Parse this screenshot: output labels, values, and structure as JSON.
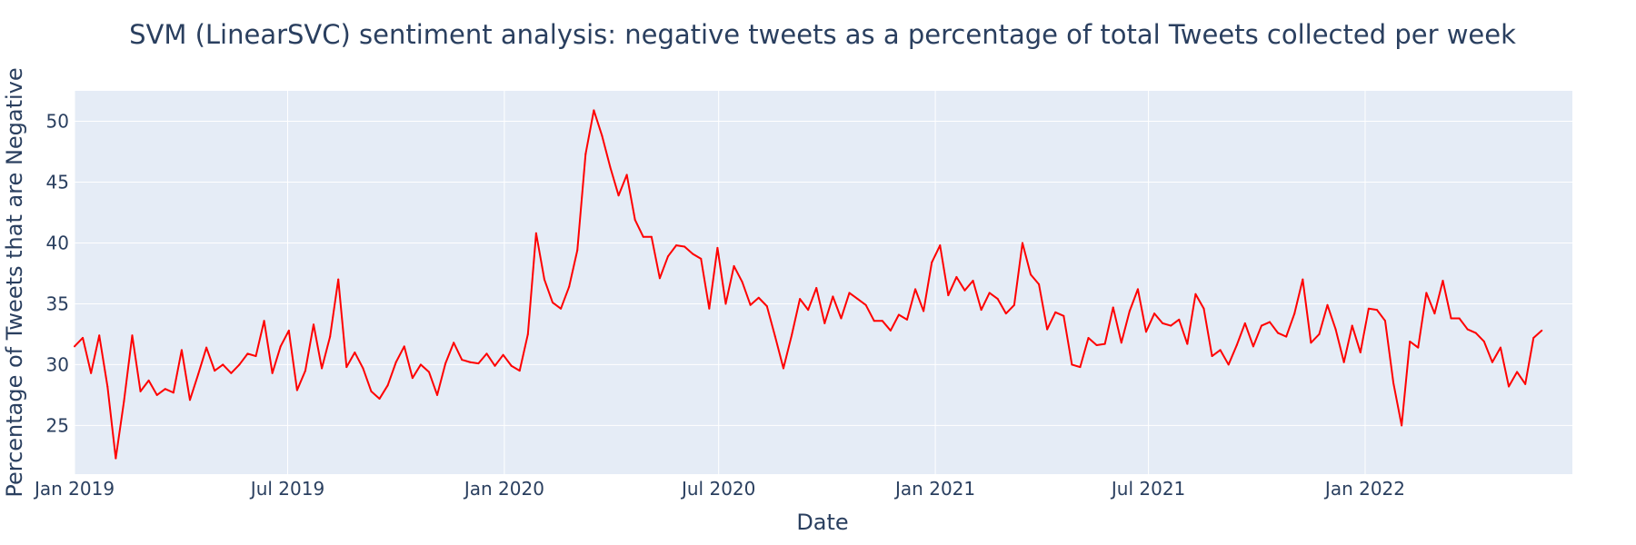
{
  "chart_data": {
    "type": "line",
    "title": "SVM (LinearSVC) sentiment analysis: negative tweets as a percentage of total Tweets collected per week",
    "xlabel": "Date",
    "ylabel": "Percentage of Tweets that are Negative",
    "xlim": [
      "2019-01-01",
      "2022-06-26"
    ],
    "ylim": [
      21,
      52.5
    ],
    "xticks": [
      {
        "label": "Jan 2019",
        "date": "2019-01-01"
      },
      {
        "label": "Jul 2019",
        "date": "2019-07-01"
      },
      {
        "label": "Jan 2020",
        "date": "2020-01-01"
      },
      {
        "label": "Jul 2020",
        "date": "2020-07-01"
      },
      {
        "label": "Jan 2021",
        "date": "2021-01-01"
      },
      {
        "label": "Jul 2021",
        "date": "2021-07-01"
      },
      {
        "label": "Jan 2022",
        "date": "2022-01-01"
      }
    ],
    "yticks": [
      25,
      30,
      35,
      40,
      45,
      50
    ],
    "grid": true,
    "legend": "none",
    "colors": {
      "line": "#ff0000",
      "plot_bg": "#e5ecf6",
      "grid": "#ffffff",
      "text": "#2a3f5f"
    },
    "series": [
      {
        "start_date": "2019-01-01",
        "step_days": 7,
        "values": [
          31.5,
          32.2,
          29.3,
          32.4,
          28.2,
          22.3,
          27.0,
          32.4,
          27.8,
          28.7,
          27.5,
          28.0,
          27.7,
          31.2,
          27.1,
          29.2,
          31.4,
          29.5,
          30.0,
          29.3,
          30.0,
          30.9,
          30.7,
          33.6,
          29.3,
          31.5,
          32.8,
          27.9,
          29.5,
          33.3,
          29.7,
          32.3,
          37.0,
          29.8,
          31.0,
          29.7,
          27.8,
          27.2,
          28.3,
          30.2,
          31.5,
          28.9,
          30.0,
          29.4,
          27.5,
          30.1,
          31.8,
          30.4,
          30.2,
          30.1,
          30.9,
          29.9,
          30.8,
          29.9,
          29.5,
          32.5,
          40.8,
          37.0,
          35.1,
          34.6,
          36.4,
          39.4,
          47.3,
          50.9,
          48.8,
          46.2,
          43.9,
          45.6,
          41.9,
          40.5,
          40.5,
          37.1,
          38.9,
          39.8,
          39.7,
          39.1,
          38.7,
          34.6,
          39.6,
          35.0,
          38.1,
          36.8,
          34.9,
          35.5,
          34.8,
          32.3,
          29.7,
          32.4,
          35.4,
          34.5,
          36.3,
          33.4,
          35.6,
          33.8,
          35.9,
          35.4,
          34.9,
          33.6,
          33.6,
          32.8,
          34.1,
          33.7,
          36.2,
          34.4,
          38.4,
          39.8,
          35.7,
          37.2,
          36.1,
          36.9,
          34.5,
          35.9,
          35.4,
          34.2,
          34.9,
          40.0,
          37.4,
          36.6,
          32.9,
          34.3,
          34.0,
          30.0,
          29.8,
          32.2,
          31.6,
          31.7,
          34.7,
          31.8,
          34.4,
          36.2,
          32.7,
          34.2,
          33.4,
          33.2,
          33.7,
          31.7,
          35.8,
          34.6,
          30.7,
          31.2,
          30.0,
          31.6,
          33.4,
          31.5,
          33.2,
          33.5,
          32.6,
          32.3,
          34.2,
          37.0,
          31.8,
          32.5,
          34.9,
          32.9,
          30.2,
          33.2,
          31.0,
          34.6,
          34.5,
          33.6,
          28.5,
          25.0,
          31.9,
          31.4,
          35.9,
          34.2,
          36.9,
          33.8,
          33.8,
          32.9,
          32.6,
          31.9,
          30.2,
          31.4,
          28.2,
          29.4,
          28.4,
          32.2,
          32.8
        ]
      }
    ]
  }
}
